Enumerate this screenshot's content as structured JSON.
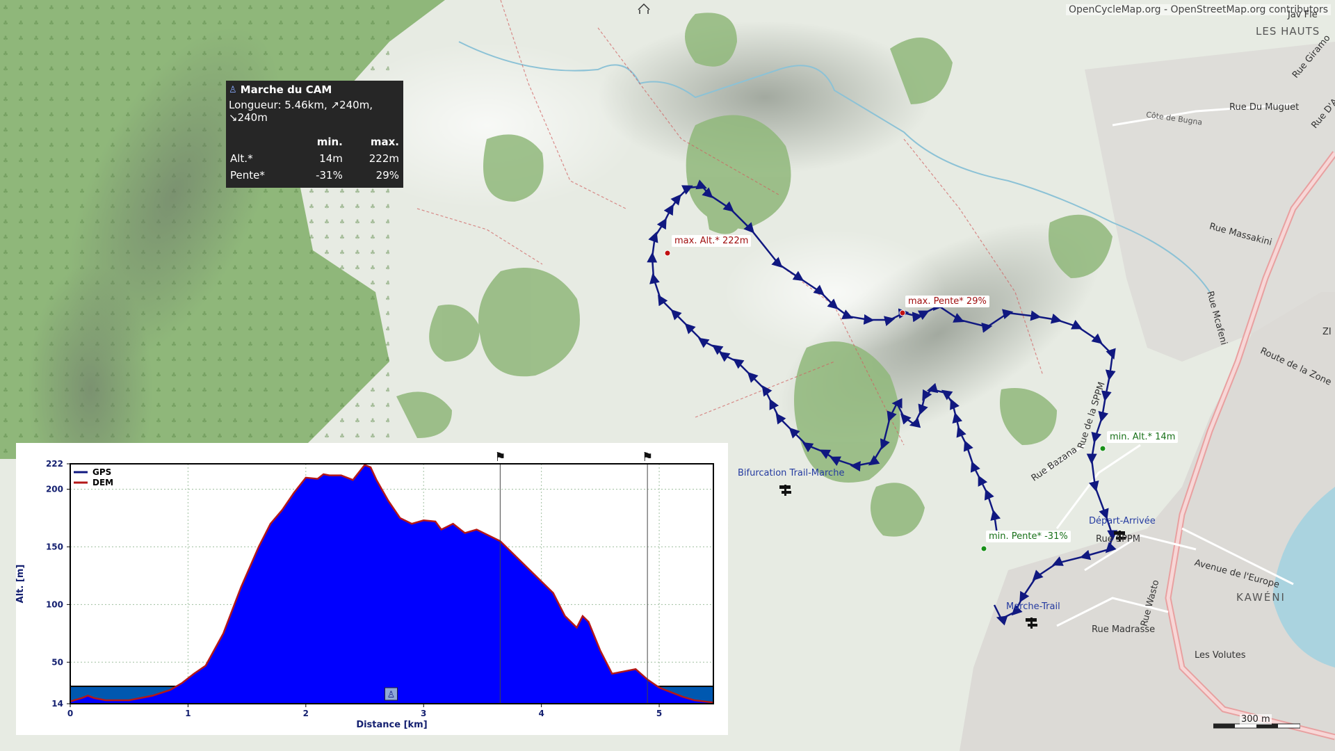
{
  "attribution": "OpenCycleMap.org - OpenStreetMap.org contributors",
  "track_info": {
    "name": "Marche du CAM",
    "icon": "hiker-icon",
    "summary": "Longueur: 5.46km, ↗240m, ↘240m",
    "col_min": "min.",
    "col_max": "max.",
    "rows": [
      {
        "label": "Alt.*",
        "min": "14m",
        "max": "222m"
      },
      {
        "label": "Pente*",
        "min": "-31%",
        "max": "29%"
      }
    ]
  },
  "markers": {
    "max_alt": "max. Alt.* 222m",
    "max_slope": "max. Pente* 29%",
    "min_alt": "min. Alt.* 14m",
    "min_slope": "min. Pente* -31%"
  },
  "waypoints": {
    "bifurcation": "Bifurcation Trail-Marche",
    "start": "Départ-Arrivée",
    "marche_trail": "Marche-Trail"
  },
  "place_labels": {
    "les_hauts": "LES HAUTS",
    "kaweni": "KAWÉNI",
    "les_volutes": "Les Volutes",
    "zi": "ZI"
  },
  "street_labels": {
    "rue_du_muguet": "Rue Du Muguet",
    "cote_de_bugna": "Côte de Bugna",
    "rue_massakini": "Rue Massakini",
    "rue_mcafeni": "Rue Mcafeni",
    "route_zone": "Route de la Zone",
    "rue_bazana": "Rue Bazana",
    "rue_sppm": "Rue SPPM",
    "rue_de_la_sppm": "Rue de la SPPM",
    "avenue_europe": "Avenue de l'Europe",
    "rue_wasto": "Rue Wasto",
    "rue_madrasse": "Rue Madrasse",
    "rue_giramo": "Rue Giramo",
    "rue_dao": "Rue D'A",
    "jav_fle": "Jav Fle"
  },
  "scale": "300 m",
  "colors": {
    "track": "#101880",
    "gps_fill": "#0000ff",
    "dem_line": "#b41818",
    "forest": "#86b070",
    "label_box": "#262626"
  },
  "chart_data": {
    "type": "area",
    "xlabel": "Distance [km]",
    "ylabel": "Alt. [m]",
    "xlim": [
      0,
      5.46
    ],
    "ylim": [
      14,
      222
    ],
    "x_ticks": [
      0,
      1,
      2,
      3,
      4,
      5
    ],
    "y_ticks": [
      14,
      50,
      100,
      150,
      200,
      222
    ],
    "grid": true,
    "legend_position": "top-left",
    "series": [
      {
        "name": "GPS",
        "color": "#0000ff"
      },
      {
        "name": "DEM",
        "color": "#b41818"
      }
    ],
    "x": [
      0,
      0.1,
      0.15,
      0.2,
      0.3,
      0.5,
      0.7,
      0.85,
      0.95,
      1.05,
      1.15,
      1.3,
      1.45,
      1.6,
      1.7,
      1.8,
      1.9,
      2.0,
      2.1,
      2.15,
      2.2,
      2.3,
      2.4,
      2.5,
      2.55,
      2.6,
      2.7,
      2.8,
      2.9,
      3.0,
      3.1,
      3.15,
      3.25,
      3.35,
      3.45,
      3.55,
      3.65,
      3.8,
      3.95,
      4.1,
      4.2,
      4.3,
      4.35,
      4.4,
      4.5,
      4.6,
      4.7,
      4.8,
      4.9,
      5.0,
      5.1,
      5.2,
      5.3,
      5.46
    ],
    "y": [
      16,
      19,
      21,
      19,
      17,
      17,
      21,
      26,
      32,
      40,
      47,
      75,
      115,
      150,
      170,
      182,
      197,
      210,
      209,
      213,
      212,
      212,
      208,
      221,
      219,
      208,
      190,
      175,
      170,
      173,
      172,
      165,
      170,
      162,
      165,
      160,
      155,
      140,
      125,
      110,
      90,
      80,
      90,
      85,
      60,
      40,
      42,
      44,
      35,
      28,
      24,
      20,
      17,
      15
    ],
    "waypoint_markers": [
      3.65,
      4.9
    ]
  }
}
